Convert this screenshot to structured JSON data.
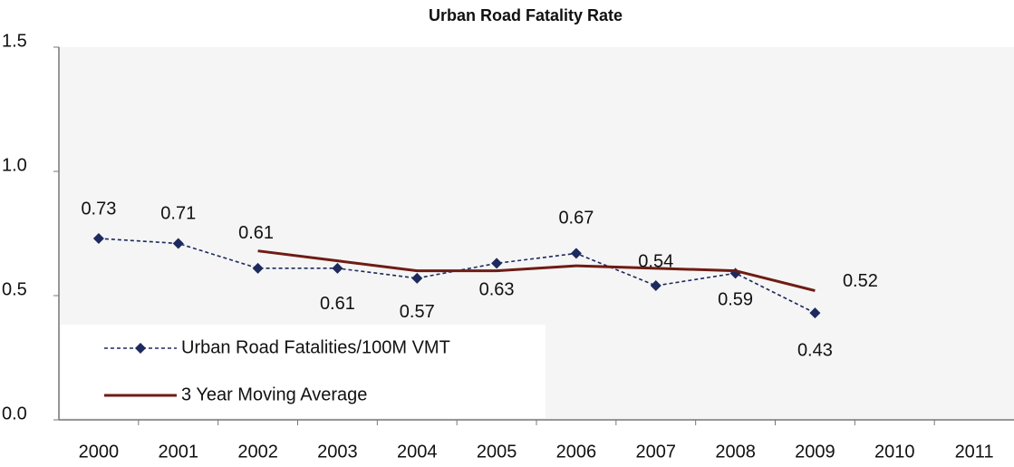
{
  "chart_data": {
    "type": "line",
    "title": "Urban Road Fatality Rate",
    "categories": [
      "2000",
      "2001",
      "2002",
      "2003",
      "2004",
      "2005",
      "2006",
      "2007",
      "2008",
      "2009",
      "2010",
      "2011"
    ],
    "series": [
      {
        "name": "Urban Road Fatalities/100M VMT",
        "color": "#1c2a5e",
        "dashed": true,
        "marker": "diamond",
        "values": [
          0.73,
          0.71,
          0.61,
          0.61,
          0.57,
          0.63,
          0.67,
          0.54,
          0.59,
          0.43,
          null,
          null
        ]
      },
      {
        "name": "3 Year Moving Average",
        "color": "#6e1c14",
        "dashed": false,
        "marker": "none",
        "values": [
          null,
          null,
          0.68,
          0.64,
          0.6,
          0.6,
          0.62,
          0.61,
          0.6,
          0.52,
          null,
          null
        ],
        "value_labels": [
          null,
          null,
          null,
          null,
          null,
          null,
          null,
          null,
          null,
          "0.52",
          null,
          null
        ]
      }
    ],
    "ylim": [
      0,
      1.5
    ],
    "yticks": [
      {
        "value": 0,
        "label": "0.0"
      },
      {
        "value": 0.5,
        "label": "0.5"
      },
      {
        "value": 1,
        "label": "1.0"
      },
      {
        "value": 1.5,
        "label": "1.5"
      }
    ],
    "grid": false,
    "legend": "lower left"
  }
}
